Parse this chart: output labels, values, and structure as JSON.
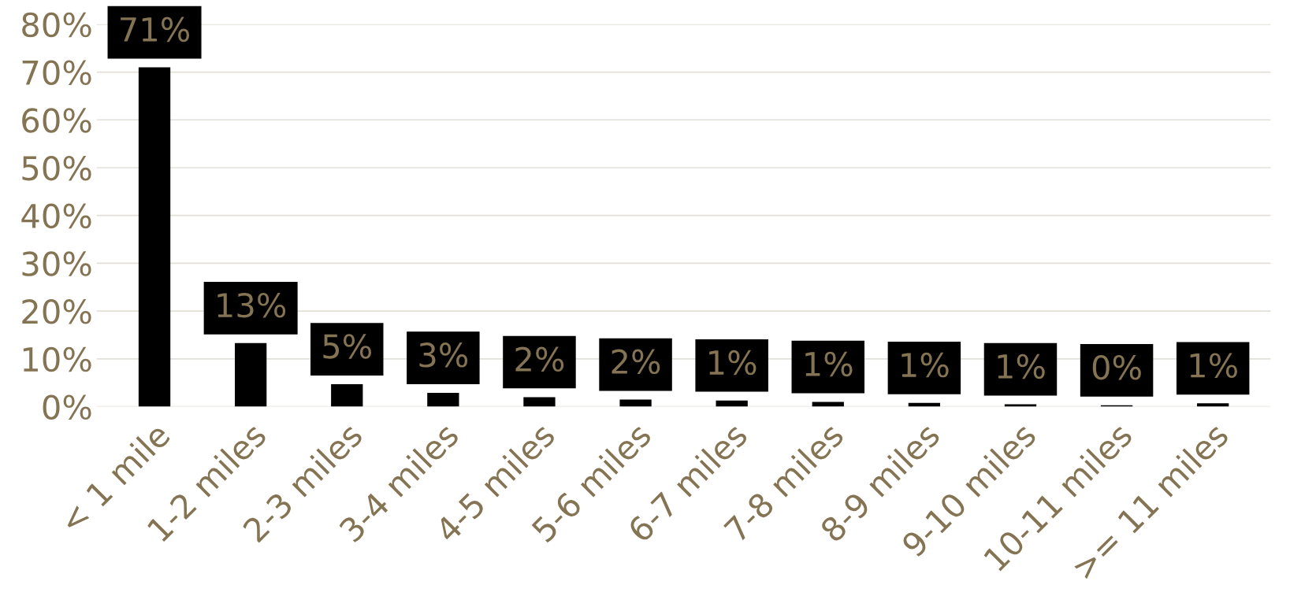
{
  "chart_data": {
    "type": "bar",
    "categories": [
      "< 1 mile",
      "1-2 miles",
      "2-3 miles",
      "3-4 miles",
      "4-5 miles",
      "5-6 miles",
      "6-7 miles",
      "7-8 miles",
      "8-9 miles",
      "9-10 miles",
      "10-11 miles",
      ">= 11 miles"
    ],
    "values": [
      71,
      13.3,
      4.7,
      2.9,
      2,
      1.5,
      1.3,
      1,
      0.8,
      0.5,
      0.3,
      0.7
    ],
    "value_labels": [
      "71%",
      "13%",
      "5%",
      "3%",
      "2%",
      "2%",
      "1%",
      "1%",
      "1%",
      "1%",
      "0%",
      "1%"
    ],
    "color": "#000000",
    "ylim": [
      0,
      80
    ],
    "yticks": [
      {
        "value": 0,
        "label": "0%"
      },
      {
        "value": 10,
        "label": "10%"
      },
      {
        "value": 20,
        "label": "20%"
      },
      {
        "value": 30,
        "label": "30%"
      },
      {
        "value": 40,
        "label": "40%"
      },
      {
        "value": 50,
        "label": "50%"
      },
      {
        "value": 60,
        "label": "60%"
      },
      {
        "value": 70,
        "label": "70%"
      },
      {
        "value": 80,
        "label": "80%"
      }
    ],
    "grid": "y"
  }
}
